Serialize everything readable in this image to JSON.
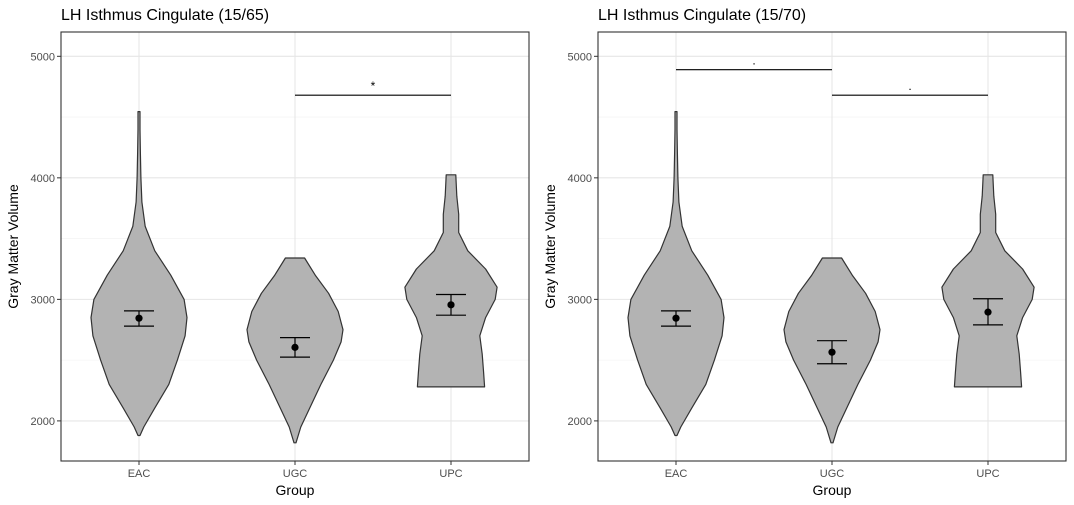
{
  "chart_data": [
    {
      "type": "violin",
      "title": "LH Isthmus Cingulate (15/65)",
      "xlabel": "Group",
      "ylabel": "Gray Matter Volume",
      "categories": [
        "EAC",
        "UGC",
        "UPC"
      ],
      "yticks": [
        2000,
        3000,
        4000,
        5000
      ],
      "ylim": [
        1670,
        5200
      ],
      "grid": true,
      "violin_fill": "#b3b3b3",
      "means": [
        2845,
        2605,
        2955
      ],
      "error_low": [
        2780,
        2525,
        2870
      ],
      "error_high": [
        2905,
        2685,
        3040
      ],
      "violins": [
        {
          "profile": [
            [
              1880,
              0.02
            ],
            [
              1950,
              0.1
            ],
            [
              2100,
              0.32
            ],
            [
              2300,
              0.62
            ],
            [
              2500,
              0.8
            ],
            [
              2700,
              0.96
            ],
            [
              2850,
              1.0
            ],
            [
              3000,
              0.94
            ],
            [
              3200,
              0.66
            ],
            [
              3400,
              0.33
            ],
            [
              3600,
              0.13
            ],
            [
              3800,
              0.06
            ],
            [
              4000,
              0.04
            ],
            [
              4200,
              0.03
            ],
            [
              4400,
              0.02
            ],
            [
              4545,
              0.02
            ]
          ]
        },
        {
          "profile": [
            [
              1820,
              0.02
            ],
            [
              1950,
              0.12
            ],
            [
              2100,
              0.3
            ],
            [
              2300,
              0.54
            ],
            [
              2500,
              0.8
            ],
            [
              2650,
              0.96
            ],
            [
              2750,
              1.0
            ],
            [
              2900,
              0.9
            ],
            [
              3050,
              0.7
            ],
            [
              3200,
              0.42
            ],
            [
              3340,
              0.2
            ]
          ]
        },
        {
          "profile": [
            [
              2280,
              0.7
            ],
            [
              2400,
              0.68
            ],
            [
              2550,
              0.65
            ],
            [
              2700,
              0.6
            ],
            [
              2850,
              0.72
            ],
            [
              3000,
              0.92
            ],
            [
              3100,
              0.96
            ],
            [
              3250,
              0.72
            ],
            [
              3400,
              0.35
            ],
            [
              3550,
              0.16
            ],
            [
              3700,
              0.16
            ],
            [
              3850,
              0.12
            ],
            [
              4025,
              0.1
            ]
          ]
        }
      ],
      "comparisons": [
        {
          "from": "UGC",
          "to": "UPC",
          "y": 4680,
          "label": "*"
        }
      ]
    },
    {
      "type": "violin",
      "title": "LH Isthmus Cingulate (15/70)",
      "xlabel": "Group",
      "ylabel": "Gray Matter Volume",
      "categories": [
        "EAC",
        "UGC",
        "UPC"
      ],
      "yticks": [
        2000,
        3000,
        4000,
        5000
      ],
      "ylim": [
        1670,
        5200
      ],
      "grid": true,
      "violin_fill": "#b3b3b3",
      "means": [
        2845,
        2565,
        2895
      ],
      "error_low": [
        2780,
        2470,
        2790
      ],
      "error_high": [
        2905,
        2660,
        3005
      ],
      "violins": [
        {
          "profile": [
            [
              1880,
              0.02
            ],
            [
              1950,
              0.1
            ],
            [
              2100,
              0.32
            ],
            [
              2300,
              0.62
            ],
            [
              2500,
              0.8
            ],
            [
              2700,
              0.96
            ],
            [
              2850,
              1.0
            ],
            [
              3000,
              0.94
            ],
            [
              3200,
              0.66
            ],
            [
              3400,
              0.33
            ],
            [
              3600,
              0.13
            ],
            [
              3800,
              0.06
            ],
            [
              4000,
              0.04
            ],
            [
              4200,
              0.03
            ],
            [
              4400,
              0.02
            ],
            [
              4545,
              0.02
            ]
          ]
        },
        {
          "profile": [
            [
              1820,
              0.02
            ],
            [
              1950,
              0.12
            ],
            [
              2100,
              0.3
            ],
            [
              2300,
              0.54
            ],
            [
              2500,
              0.8
            ],
            [
              2650,
              0.96
            ],
            [
              2750,
              1.0
            ],
            [
              2900,
              0.9
            ],
            [
              3050,
              0.7
            ],
            [
              3200,
              0.42
            ],
            [
              3340,
              0.2
            ]
          ]
        },
        {
          "profile": [
            [
              2280,
              0.7
            ],
            [
              2400,
              0.68
            ],
            [
              2550,
              0.65
            ],
            [
              2700,
              0.6
            ],
            [
              2850,
              0.72
            ],
            [
              3000,
              0.92
            ],
            [
              3100,
              0.96
            ],
            [
              3250,
              0.72
            ],
            [
              3400,
              0.35
            ],
            [
              3550,
              0.16
            ],
            [
              3700,
              0.16
            ],
            [
              3850,
              0.12
            ],
            [
              4025,
              0.1
            ]
          ]
        }
      ],
      "comparisons": [
        {
          "from": "EAC",
          "to": "UGC",
          "y": 4890,
          "label": "."
        },
        {
          "from": "UGC",
          "to": "UPC",
          "y": 4680,
          "label": "."
        }
      ]
    }
  ]
}
